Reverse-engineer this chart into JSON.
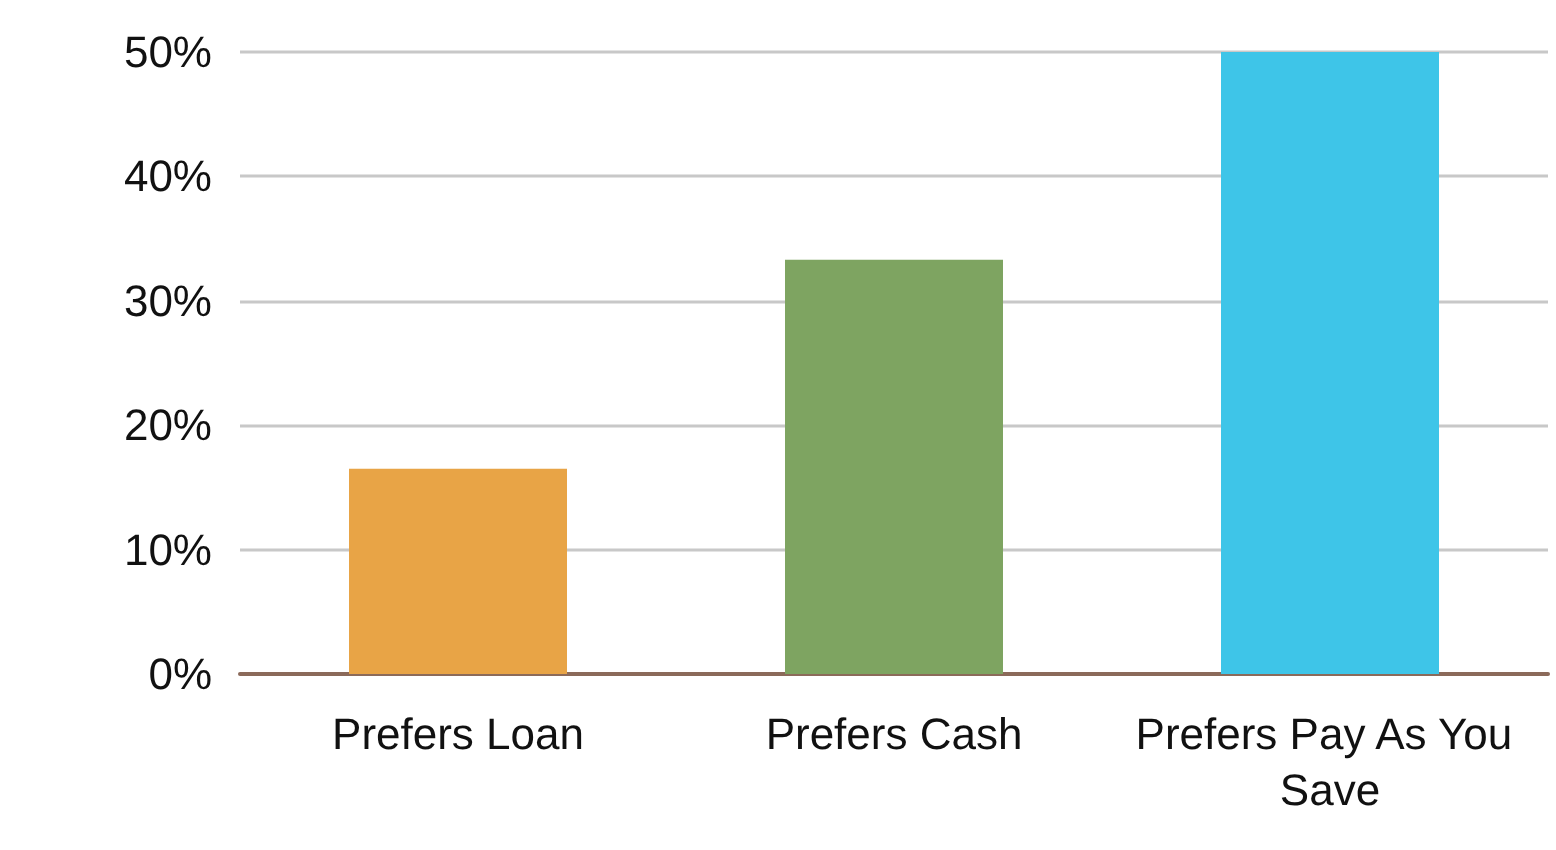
{
  "chart_data": {
    "type": "bar",
    "categories": [
      "Prefers Loan",
      "Prefers Cash",
      "Prefers Pay As You Save"
    ],
    "values": [
      16.5,
      33.3,
      50
    ],
    "colors": [
      "#e8a446",
      "#7ea461",
      "#3ec5e8"
    ],
    "ylim": [
      0,
      50
    ],
    "yticks": [
      {
        "value": 0,
        "label": "0%"
      },
      {
        "value": 10,
        "label": "10%"
      },
      {
        "value": 20,
        "label": "20%"
      },
      {
        "value": 30,
        "label": "30%"
      },
      {
        "value": 40,
        "label": "40%"
      },
      {
        "value": 50,
        "label": "50%"
      }
    ],
    "grid": "y"
  }
}
